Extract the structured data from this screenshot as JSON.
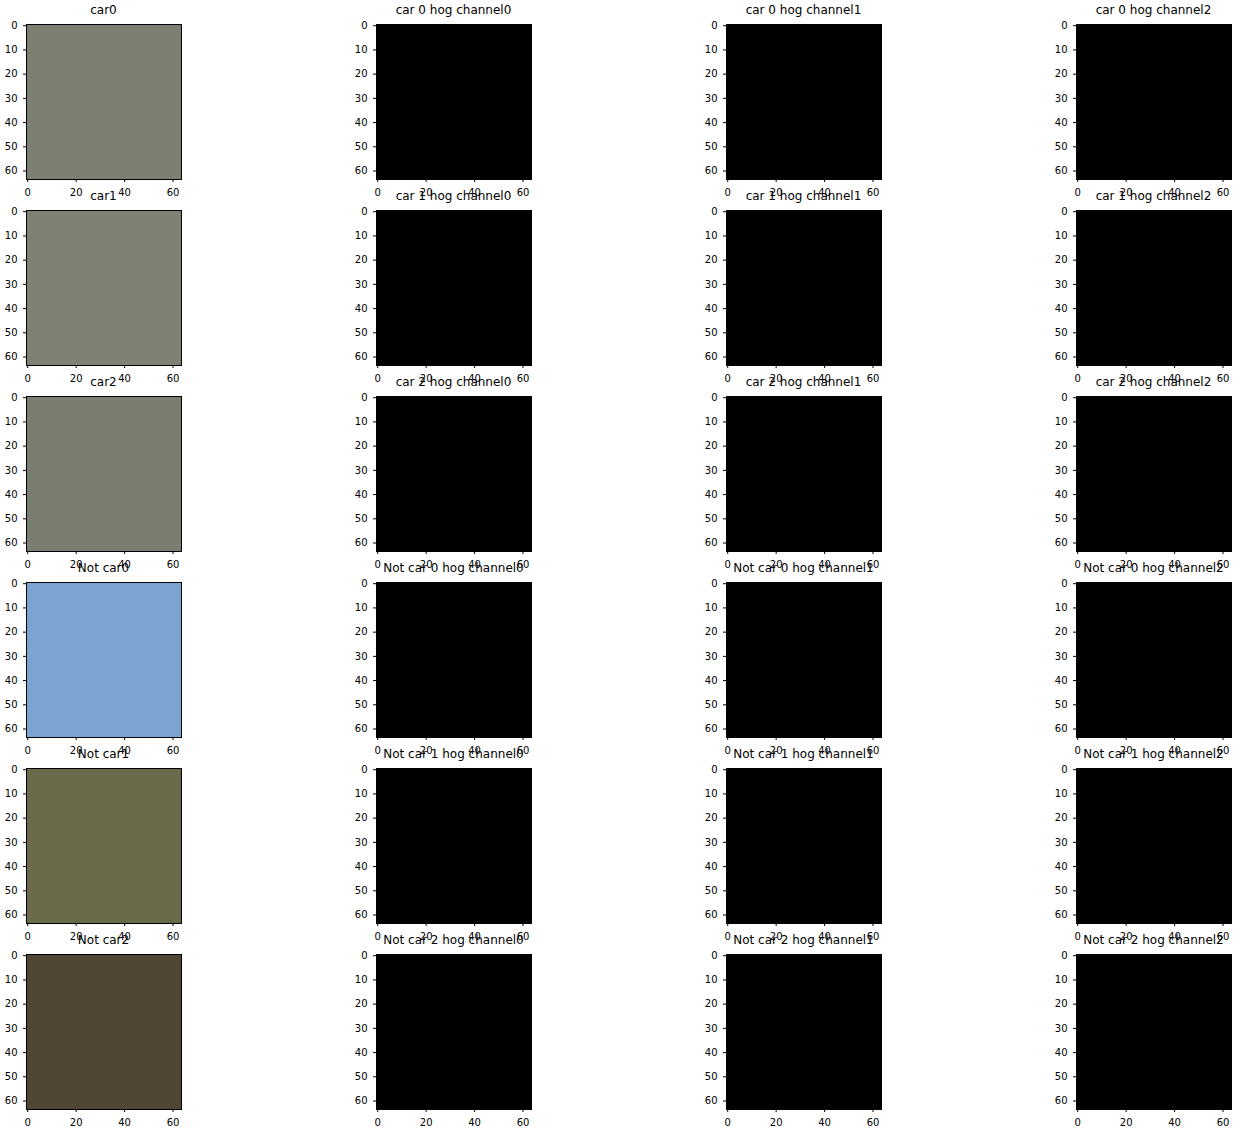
{
  "chart_data": [
    {
      "type": "image",
      "title": "car0",
      "color": "#7b8073",
      "xlim": [
        -0.5,
        63.5
      ],
      "ylim": [
        63.5,
        -0.5
      ],
      "xticks": [
        0,
        20,
        40,
        60
      ],
      "yticks": [
        0,
        10,
        20,
        30,
        40,
        50,
        60
      ]
    },
    {
      "type": "image",
      "title": "car 0 hog channel0",
      "color": "#000000",
      "xlim": [
        -0.5,
        63.5
      ],
      "ylim": [
        63.5,
        -0.5
      ],
      "xticks": [
        0,
        20,
        40,
        60
      ],
      "yticks": [
        0,
        10,
        20,
        30,
        40,
        50,
        60
      ]
    },
    {
      "type": "image",
      "title": "car 0 hog channel1",
      "color": "#000000",
      "xlim": [
        -0.5,
        63.5
      ],
      "ylim": [
        63.5,
        -0.5
      ],
      "xticks": [
        0,
        20,
        40,
        60
      ],
      "yticks": [
        0,
        10,
        20,
        30,
        40,
        50,
        60
      ]
    },
    {
      "type": "image",
      "title": "car 0 hog channel2",
      "color": "#000000",
      "xlim": [
        -0.5,
        63.5
      ],
      "ylim": [
        63.5,
        -0.5
      ],
      "xticks": [
        0,
        20,
        40,
        60
      ],
      "yticks": [
        0,
        10,
        20,
        30,
        40,
        50,
        60
      ]
    },
    {
      "type": "image",
      "title": "car1",
      "color": "#7d8275",
      "xlim": [
        -0.5,
        63.5
      ],
      "ylim": [
        63.5,
        -0.5
      ],
      "xticks": [
        0,
        20,
        40,
        60
      ],
      "yticks": [
        0,
        10,
        20,
        30,
        40,
        50,
        60
      ]
    },
    {
      "type": "image",
      "title": "car 1 hog channel0",
      "color": "#000000",
      "xlim": [
        -0.5,
        63.5
      ],
      "ylim": [
        63.5,
        -0.5
      ],
      "xticks": [
        0,
        20,
        40,
        60
      ],
      "yticks": [
        0,
        10,
        20,
        30,
        40,
        50,
        60
      ]
    },
    {
      "type": "image",
      "title": "car 1 hog channel1",
      "color": "#000000",
      "xlim": [
        -0.5,
        63.5
      ],
      "ylim": [
        63.5,
        -0.5
      ],
      "xticks": [
        0,
        20,
        40,
        60
      ],
      "yticks": [
        0,
        10,
        20,
        30,
        40,
        50,
        60
      ]
    },
    {
      "type": "image",
      "title": "car 1 hog channel2",
      "color": "#000000",
      "xlim": [
        -0.5,
        63.5
      ],
      "ylim": [
        63.5,
        -0.5
      ],
      "xticks": [
        0,
        20,
        40,
        60
      ],
      "yticks": [
        0,
        10,
        20,
        30,
        40,
        50,
        60
      ]
    },
    {
      "type": "image",
      "title": "car2",
      "color": "#797e71",
      "xlim": [
        -0.5,
        63.5
      ],
      "ylim": [
        63.5,
        -0.5
      ],
      "xticks": [
        0,
        20,
        40,
        60
      ],
      "yticks": [
        0,
        10,
        20,
        30,
        40,
        50,
        60
      ]
    },
    {
      "type": "image",
      "title": "car 2 hog channel0",
      "color": "#000000",
      "xlim": [
        -0.5,
        63.5
      ],
      "ylim": [
        63.5,
        -0.5
      ],
      "xticks": [
        0,
        20,
        40,
        60
      ],
      "yticks": [
        0,
        10,
        20,
        30,
        40,
        50,
        60
      ]
    },
    {
      "type": "image",
      "title": "car 2 hog channel1",
      "color": "#000000",
      "xlim": [
        -0.5,
        63.5
      ],
      "ylim": [
        63.5,
        -0.5
      ],
      "xticks": [
        0,
        20,
        40,
        60
      ],
      "yticks": [
        0,
        10,
        20,
        30,
        40,
        50,
        60
      ]
    },
    {
      "type": "image",
      "title": "car 2 hog channel2",
      "color": "#000000",
      "xlim": [
        -0.5,
        63.5
      ],
      "ylim": [
        63.5,
        -0.5
      ],
      "xticks": [
        0,
        20,
        40,
        60
      ],
      "yticks": [
        0,
        10,
        20,
        30,
        40,
        50,
        60
      ]
    },
    {
      "type": "image",
      "title": "Not car0",
      "color": "#7ba4d2",
      "xlim": [
        -0.5,
        63.5
      ],
      "ylim": [
        63.5,
        -0.5
      ],
      "xticks": [
        0,
        20,
        40,
        60
      ],
      "yticks": [
        0,
        10,
        20,
        30,
        40,
        50,
        60
      ]
    },
    {
      "type": "image",
      "title": "Not car 0 hog channel0",
      "color": "#000000",
      "xlim": [
        -0.5,
        63.5
      ],
      "ylim": [
        63.5,
        -0.5
      ],
      "xticks": [
        0,
        20,
        40,
        60
      ],
      "yticks": [
        0,
        10,
        20,
        30,
        40,
        50,
        60
      ]
    },
    {
      "type": "image",
      "title": "Not car 0 hog channel1",
      "color": "#000000",
      "xlim": [
        -0.5,
        63.5
      ],
      "ylim": [
        63.5,
        -0.5
      ],
      "xticks": [
        0,
        20,
        40,
        60
      ],
      "yticks": [
        0,
        10,
        20,
        30,
        40,
        50,
        60
      ]
    },
    {
      "type": "image",
      "title": "Not car 0 hog channel2",
      "color": "#000000",
      "xlim": [
        -0.5,
        63.5
      ],
      "ylim": [
        63.5,
        -0.5
      ],
      "xticks": [
        0,
        20,
        40,
        60
      ],
      "yticks": [
        0,
        10,
        20,
        30,
        40,
        50,
        60
      ]
    },
    {
      "type": "image",
      "title": "Not car1",
      "color": "#6a6a4b",
      "xlim": [
        -0.5,
        63.5
      ],
      "ylim": [
        63.5,
        -0.5
      ],
      "xticks": [
        0,
        20,
        40,
        60
      ],
      "yticks": [
        0,
        10,
        20,
        30,
        40,
        50,
        60
      ]
    },
    {
      "type": "image",
      "title": "Not car 1 hog channel0",
      "color": "#000000",
      "xlim": [
        -0.5,
        63.5
      ],
      "ylim": [
        63.5,
        -0.5
      ],
      "xticks": [
        0,
        20,
        40,
        60
      ],
      "yticks": [
        0,
        10,
        20,
        30,
        40,
        50,
        60
      ]
    },
    {
      "type": "image",
      "title": "Not car 1 hog channel1",
      "color": "#000000",
      "xlim": [
        -0.5,
        63.5
      ],
      "ylim": [
        63.5,
        -0.5
      ],
      "xticks": [
        0,
        20,
        40,
        60
      ],
      "yticks": [
        0,
        10,
        20,
        30,
        40,
        50,
        60
      ]
    },
    {
      "type": "image",
      "title": "Not car 1 hog channel2",
      "color": "#000000",
      "xlim": [
        -0.5,
        63.5
      ],
      "ylim": [
        63.5,
        -0.5
      ],
      "xticks": [
        0,
        20,
        40,
        60
      ],
      "yticks": [
        0,
        10,
        20,
        30,
        40,
        50,
        60
      ]
    },
    {
      "type": "image",
      "title": "Not car2",
      "color": "#4f4733",
      "xlim": [
        -0.5,
        63.5
      ],
      "ylim": [
        63.5,
        -0.5
      ],
      "xticks": [
        0,
        20,
        40,
        60
      ],
      "yticks": [
        0,
        10,
        20,
        30,
        40,
        50,
        60
      ]
    },
    {
      "type": "image",
      "title": "Not car 2 hog channel0",
      "color": "#000000",
      "xlim": [
        -0.5,
        63.5
      ],
      "ylim": [
        63.5,
        -0.5
      ],
      "xticks": [
        0,
        20,
        40,
        60
      ],
      "yticks": [
        0,
        10,
        20,
        30,
        40,
        50,
        60
      ]
    },
    {
      "type": "image",
      "title": "Not car 2 hog channel1",
      "color": "#000000",
      "xlim": [
        -0.5,
        63.5
      ],
      "ylim": [
        63.5,
        -0.5
      ],
      "xticks": [
        0,
        20,
        40,
        60
      ],
      "yticks": [
        0,
        10,
        20,
        30,
        40,
        50,
        60
      ]
    },
    {
      "type": "image",
      "title": "Not car 2 hog channel2",
      "color": "#000000",
      "xlim": [
        -0.5,
        63.5
      ],
      "ylim": [
        63.5,
        -0.5
      ],
      "xticks": [
        0,
        20,
        40,
        60
      ],
      "yticks": [
        0,
        10,
        20,
        30,
        40,
        50,
        60
      ]
    }
  ]
}
